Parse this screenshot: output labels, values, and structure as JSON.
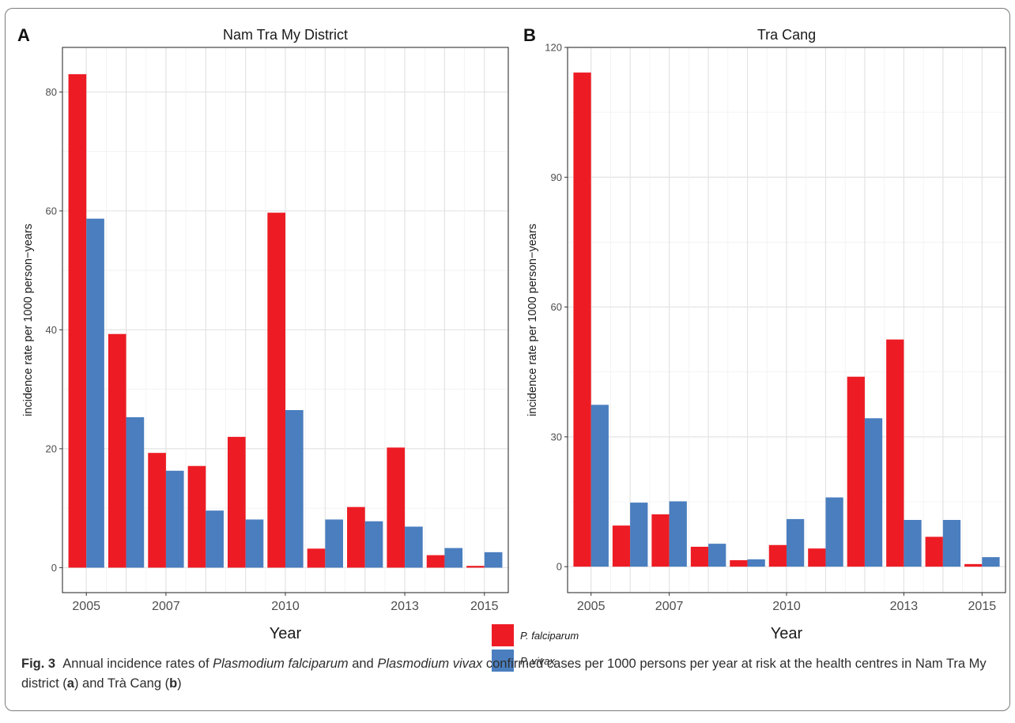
{
  "chart_data": [
    {
      "type": "bar",
      "panel_label": "A",
      "title": "Nam Tra My District",
      "xlabel": "Year",
      "ylabel": "incidence rate per 1000 person−years",
      "categories": [
        "2005",
        "2006",
        "2007",
        "2008",
        "2009",
        "2010",
        "2011",
        "2012",
        "2013",
        "2014",
        "2015"
      ],
      "x_tick_labels": [
        "2005",
        "2007",
        "2010",
        "2013",
        "2015"
      ],
      "y_ticks": [
        0,
        20,
        40,
        60,
        80
      ],
      "ylim": [
        -4.2,
        87.5
      ],
      "grid": true,
      "series": [
        {
          "name": "P. falciparum",
          "color": "#ed1c24",
          "values": [
            83.0,
            39.3,
            19.3,
            17.1,
            22.0,
            59.7,
            3.2,
            10.2,
            20.2,
            2.1,
            0.3
          ]
        },
        {
          "name": "P. vivax",
          "color": "#4a7ebf",
          "values": [
            58.7,
            25.3,
            16.3,
            9.6,
            8.1,
            26.5,
            8.1,
            7.8,
            6.9,
            3.3,
            2.6
          ]
        }
      ]
    },
    {
      "type": "bar",
      "panel_label": "B",
      "title": "Tra Cang",
      "xlabel": "Year",
      "ylabel": "incidence rate per 1000 person−years",
      "categories": [
        "2005",
        "2006",
        "2007",
        "2008",
        "2009",
        "2010",
        "2011",
        "2012",
        "2013",
        "2014",
        "2015"
      ],
      "x_tick_labels": [
        "2005",
        "2007",
        "2010",
        "2013",
        "2015"
      ],
      "y_ticks": [
        0,
        30,
        60,
        90,
        120
      ],
      "ylim": [
        -6,
        120
      ],
      "grid": true,
      "series": [
        {
          "name": "P. falciparum",
          "color": "#ed1c24",
          "values": [
            114.2,
            9.5,
            12.1,
            4.6,
            1.5,
            5.0,
            4.2,
            43.9,
            52.5,
            6.9,
            0.6
          ]
        },
        {
          "name": "P. vivax",
          "color": "#4a7ebf",
          "values": [
            37.4,
            14.8,
            15.1,
            5.3,
            1.7,
            11.0,
            16.0,
            34.3,
            10.8,
            10.8,
            2.2
          ]
        }
      ]
    }
  ],
  "legend": {
    "placement": "bottom-center",
    "items": [
      {
        "label": "P. falciparum",
        "color": "#ed1c24"
      },
      {
        "label": "P. vivax",
        "color": "#4a7ebf"
      }
    ]
  },
  "caption": {
    "label": "Fig. 3",
    "parts": [
      {
        "text": "Annual incidence rates of ",
        "style": "normal"
      },
      {
        "text": "Plasmodium falciparum",
        "style": "italic"
      },
      {
        "text": " and ",
        "style": "normal"
      },
      {
        "text": "Plasmodium vivax",
        "style": "italic"
      },
      {
        "text": " confirmed cases per 1000 persons per year at risk at the health centres in Nam Tra My district (",
        "style": "normal"
      },
      {
        "text": "a",
        "style": "bold"
      },
      {
        "text": ") and Trà Cang (",
        "style": "normal"
      },
      {
        "text": "b",
        "style": "bold"
      },
      {
        "text": ")",
        "style": "normal"
      }
    ]
  },
  "colors": {
    "frame": "#7c7c7c",
    "grid": "#e3e3e3",
    "axis_text": "#4d4d4d"
  }
}
